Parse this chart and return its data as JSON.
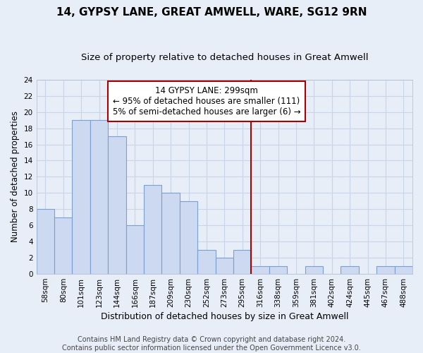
{
  "title1": "14, GYPSY LANE, GREAT AMWELL, WARE, SG12 9RN",
  "title2": "Size of property relative to detached houses in Great Amwell",
  "xlabel": "Distribution of detached houses by size in Great Amwell",
  "ylabel": "Number of detached properties",
  "categories": [
    "58sqm",
    "80sqm",
    "101sqm",
    "123sqm",
    "144sqm",
    "166sqm",
    "187sqm",
    "209sqm",
    "230sqm",
    "252sqm",
    "273sqm",
    "295sqm",
    "316sqm",
    "338sqm",
    "359sqm",
    "381sqm",
    "402sqm",
    "424sqm",
    "445sqm",
    "467sqm",
    "488sqm"
  ],
  "values": [
    8,
    7,
    19,
    19,
    17,
    6,
    11,
    10,
    9,
    3,
    2,
    3,
    1,
    1,
    0,
    1,
    0,
    1,
    0,
    1,
    1
  ],
  "bar_color": "#ccd9f0",
  "bar_edge_color": "#7a9fd4",
  "grid_color": "#c8d4e8",
  "background_color": "#e8eef8",
  "vline_x_index": 11.5,
  "vline_color": "#aa0000",
  "annotation_text": "14 GYPSY LANE: 299sqm\n← 95% of detached houses are smaller (111)\n5% of semi-detached houses are larger (6) →",
  "annotation_box_color": "#ffffff",
  "annotation_border_color": "#aa0000",
  "ylim": [
    0,
    24
  ],
  "yticks": [
    0,
    2,
    4,
    6,
    8,
    10,
    12,
    14,
    16,
    18,
    20,
    22,
    24
  ],
  "footer_text": "Contains HM Land Registry data © Crown copyright and database right 2024.\nContains public sector information licensed under the Open Government Licence v3.0.",
  "title1_fontsize": 11,
  "title2_fontsize": 9.5,
  "xlabel_fontsize": 9,
  "ylabel_fontsize": 8.5,
  "tick_fontsize": 7.5,
  "annotation_fontsize": 8.5,
  "footer_fontsize": 7
}
